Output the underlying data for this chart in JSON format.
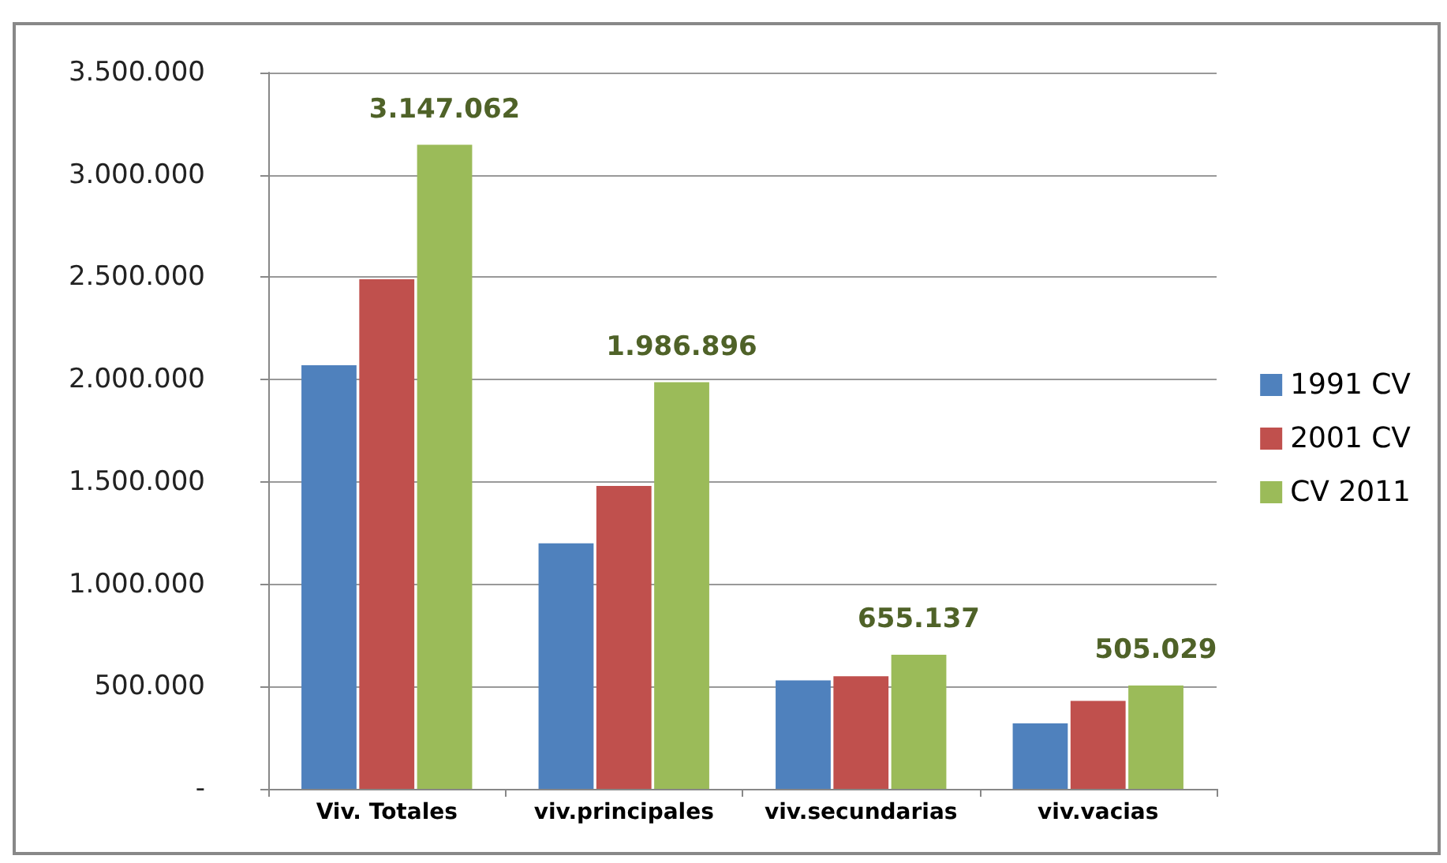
{
  "chart_data": {
    "type": "bar",
    "categories": [
      "Viv. Totales",
      "viv.principales",
      "viv.secundarias",
      "viv.vacias"
    ],
    "series": [
      {
        "name": "1991 CV",
        "color": "#4f81bd",
        "values": [
          2070000,
          1200000,
          530000,
          320000
        ]
      },
      {
        "name": "2001 CV",
        "color": "#c0504d",
        "values": [
          2490000,
          1480000,
          550000,
          430000
        ]
      },
      {
        "name": "CV 2011",
        "color": "#9bbb59",
        "values": [
          3147062,
          1986896,
          655137,
          505029
        ],
        "value_labels": [
          "3.147.062",
          "1.986.896",
          "655.137",
          "505.029"
        ]
      }
    ],
    "ylim": [
      0,
      3500000
    ],
    "yticks": [
      {
        "value": 0,
        "label": "-"
      },
      {
        "value": 500000,
        "label": "500.000"
      },
      {
        "value": 1000000,
        "label": "1.000.000"
      },
      {
        "value": 1500000,
        "label": "1.500.000"
      },
      {
        "value": 2000000,
        "label": "2.000.000"
      },
      {
        "value": 2500000,
        "label": "2.500.000"
      },
      {
        "value": 3000000,
        "label": "3.000.000"
      },
      {
        "value": 3500000,
        "label": "3.500.000"
      }
    ],
    "grid": "y",
    "legend": "right"
  }
}
